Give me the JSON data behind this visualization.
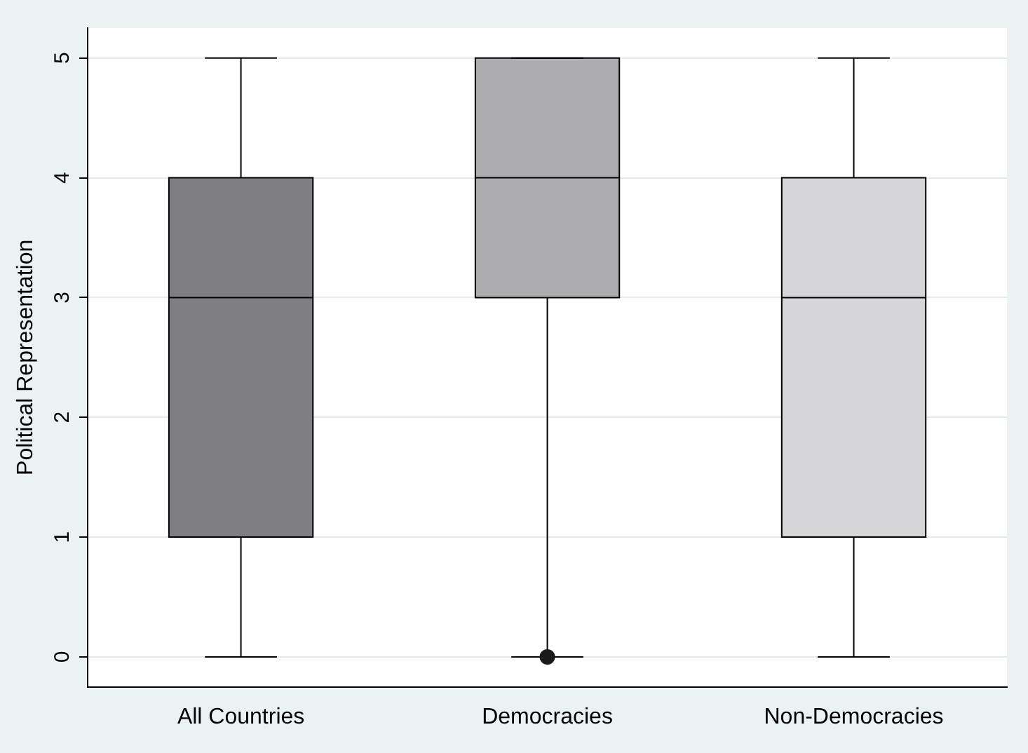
{
  "chart_data": {
    "type": "box",
    "ylabel": "Political Representation",
    "categories": [
      "All Countries",
      "Democracies",
      "Non-Democracies"
    ],
    "boxes": [
      {
        "low": 0,
        "q1": 1,
        "median": 3,
        "q3": 4,
        "high": 5
      },
      {
        "low": 0,
        "q1": 3,
        "median": 4,
        "q3": 5,
        "high": 5,
        "outliers": [
          0
        ]
      },
      {
        "low": 0,
        "q1": 1,
        "median": 3,
        "q3": 4,
        "high": 5
      }
    ],
    "colors": [
      "#7f7f83",
      "#adadb1",
      "#d6d6d8"
    ],
    "ylim": [
      -0.25,
      5.25
    ],
    "yticks": [
      0,
      1,
      2,
      3,
      4,
      5
    ],
    "grid": "y",
    "legend": false
  }
}
